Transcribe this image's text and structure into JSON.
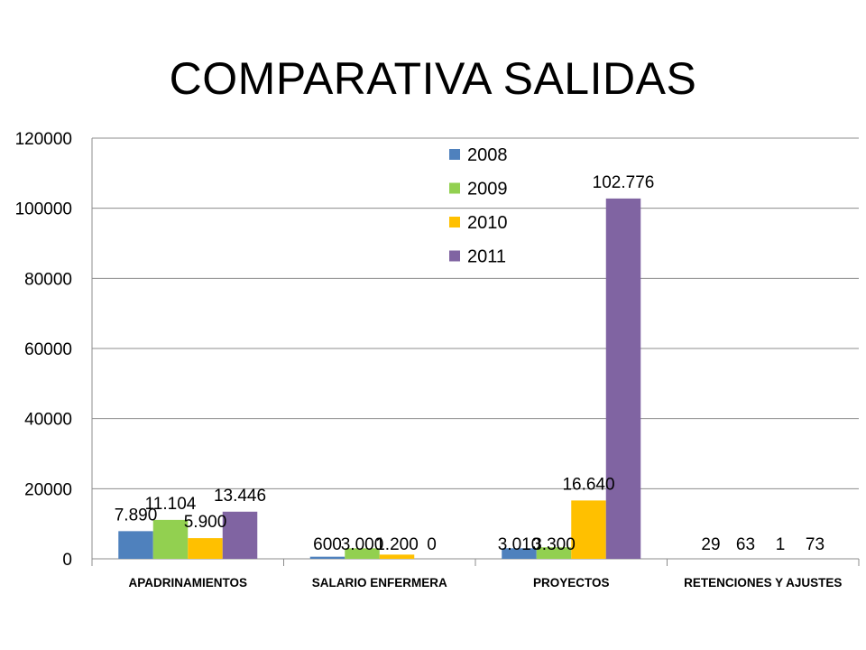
{
  "slide": {
    "title": "COMPARATIVA SALIDAS"
  },
  "chart_data": {
    "type": "bar",
    "title": "",
    "categories": [
      "APADRINAMIENTOS",
      "SALARIO ENFERMERA",
      "PROYECTOS",
      "RETENCIONES Y AJUSTES"
    ],
    "series": [
      {
        "name": "2008",
        "values": [
          7890,
          600,
          3010,
          29
        ],
        "labels": [
          "7.890",
          "600",
          "3.010",
          "29"
        ],
        "color": "#4F81BD"
      },
      {
        "name": "2009",
        "values": [
          11104,
          3000,
          3300,
          63
        ],
        "labels": [
          "11.104",
          "3.000",
          "3.300",
          "63"
        ],
        "color": "#92D050"
      },
      {
        "name": "2010",
        "values": [
          5900,
          1200,
          16640,
          1
        ],
        "labels": [
          "5.900",
          "1.200",
          "16.640",
          "1"
        ],
        "color": "#FFC000"
      },
      {
        "name": "2011",
        "values": [
          13446,
          0,
          102776,
          73
        ],
        "labels": [
          "13.446",
          "0",
          "102.776",
          "73"
        ],
        "color": "#8064A2"
      }
    ],
    "ylim": [
      0,
      120000
    ],
    "yticks": [
      "0",
      "20000",
      "40000",
      "60000",
      "80000",
      "100000",
      "120000"
    ],
    "xlabel": "",
    "ylabel": "",
    "grid": true,
    "legend_position": "top-center"
  }
}
